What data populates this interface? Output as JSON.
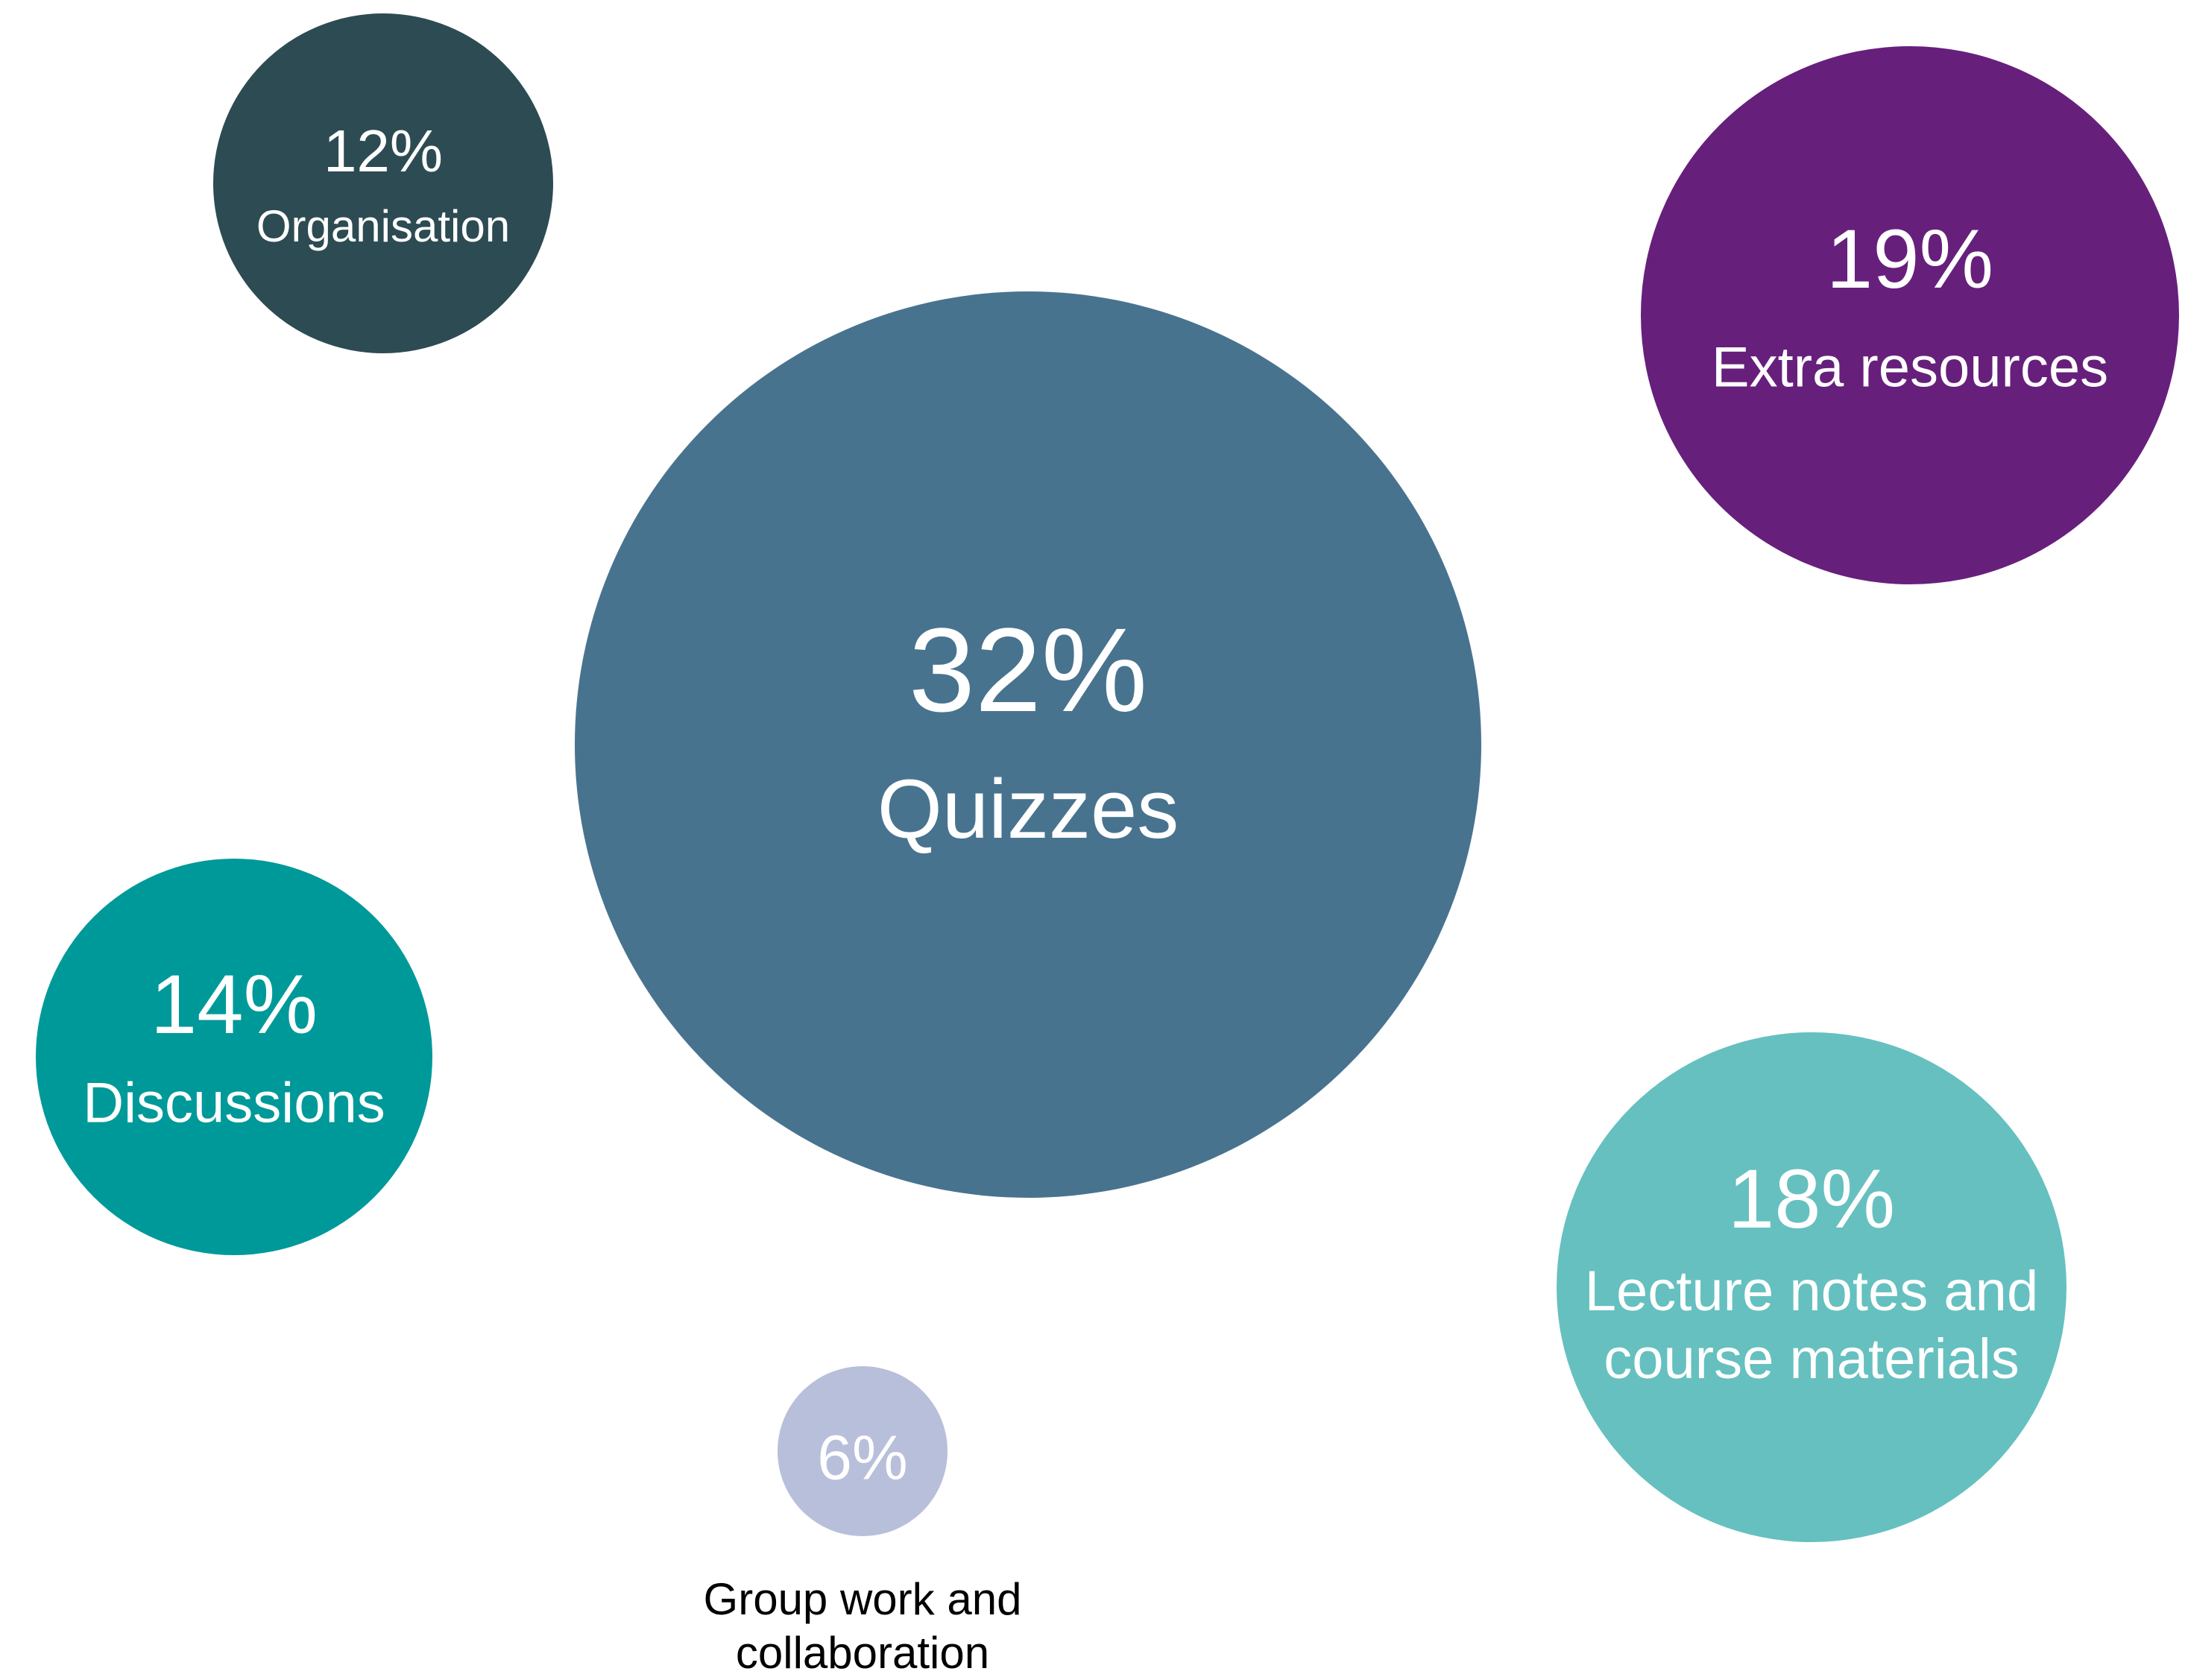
{
  "chart_data": {
    "type": "bubble",
    "categories": [
      "Organisation",
      "Extra resources",
      "Quizzes",
      "Discussions",
      "Lecture notes and course materials",
      "Group work and collaboration"
    ],
    "values": [
      12,
      19,
      32,
      14,
      18,
      6
    ],
    "value_labels": [
      "12%",
      "19%",
      "32%",
      "14%",
      "18%",
      "6%"
    ],
    "colors": [
      "#2d4b52",
      "#671f7c",
      "#48738f",
      "#009999",
      "#66c0c0",
      "#b8bfdb"
    ]
  }
}
